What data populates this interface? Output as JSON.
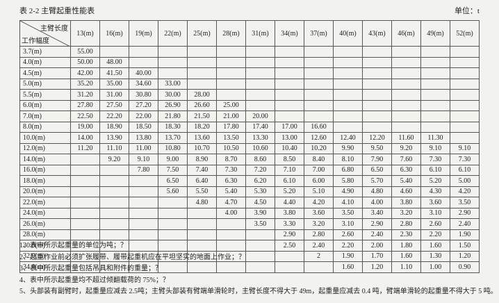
{
  "header": {
    "title": "表 2-2  主臂起重性能表",
    "unit": "单位：t"
  },
  "table": {
    "corner_top": "主臂长度",
    "corner_bottom": "工作幅度",
    "columns": [
      "13(m)",
      "16(m)",
      "19(m)",
      "22(m)",
      "25(m)",
      "28(m)",
      "31(m)",
      "34(m)",
      "37(m)",
      "40(m)",
      "43(m)",
      "46(m)",
      "49(m)",
      "52(m)"
    ],
    "rows": [
      [
        "3.7(m)",
        "55.00",
        null,
        null,
        null,
        null,
        null,
        null,
        null,
        null,
        null,
        null,
        null,
        null,
        null
      ],
      [
        "4.0(m)",
        "50.00",
        "48.00",
        null,
        null,
        null,
        null,
        null,
        null,
        null,
        null,
        null,
        null,
        null,
        null
      ],
      [
        "4.5(m)",
        "42.00",
        "41.50",
        "40.00",
        null,
        null,
        null,
        null,
        null,
        null,
        null,
        null,
        null,
        null,
        null
      ],
      [
        "5.0(m)",
        "35.20",
        "35.00",
        "34.60",
        "33.00",
        null,
        null,
        null,
        null,
        null,
        null,
        null,
        null,
        null,
        null
      ],
      [
        "5.5(m)",
        "31.20",
        "31.00",
        "30.80",
        "30.00",
        "28.00",
        null,
        null,
        null,
        null,
        null,
        null,
        null,
        null,
        null
      ],
      [
        "6.0(m)",
        "27.80",
        "27.50",
        "27.20",
        "26.90",
        "26.60",
        "25.00",
        null,
        null,
        null,
        null,
        null,
        null,
        null,
        null
      ],
      [
        "7.0(m)",
        "22.50",
        "22.20",
        "22.00",
        "21.80",
        "21.50",
        "21.00",
        "20.00",
        null,
        null,
        null,
        null,
        null,
        null,
        null
      ],
      [
        "8.0(m)",
        "19.00",
        "18.90",
        "18.50",
        "18.30",
        "18.20",
        "17.80",
        "17.40",
        "17.00",
        "16.60",
        null,
        null,
        null,
        null,
        null
      ],
      [
        "10.0(m)",
        "14.00",
        "13.90",
        "13.80",
        "13.70",
        "13.60",
        "13.50",
        "13.30",
        "13.00",
        "12.60",
        "12.40",
        "12.20",
        "11.60",
        "11.30",
        null
      ],
      [
        "12.0(m)",
        "11.20",
        "11.10",
        "11.00",
        "10.80",
        "10.70",
        "10.50",
        "10.60",
        "10.40",
        "10.20",
        "9.90",
        "9.50",
        "9.20",
        "9.10",
        "9.10"
      ],
      [
        "14.0(m)",
        null,
        "9.20",
        "9.10",
        "9.00",
        "8.90",
        "8.70",
        "8.60",
        "8.50",
        "8.40",
        "8.10",
        "7.90",
        "7.60",
        "7.30",
        "7.30"
      ],
      [
        "16.0(m)",
        null,
        null,
        "7.80",
        "7.50",
        "7.40",
        "7.30",
        "7.20",
        "7.10",
        "7.00",
        "6.80",
        "6.50",
        "6.30",
        "6.10",
        "6.10"
      ],
      [
        "18.0(m)",
        null,
        null,
        null,
        "6.50",
        "6.40",
        "6.30",
        "6.20",
        "6.10",
        "6.00",
        "5.80",
        "5.70",
        "5.40",
        "5.20",
        "5.00"
      ],
      [
        "20.0(m)",
        null,
        null,
        null,
        "5.60",
        "5.50",
        "5.40",
        "5.30",
        "5.20",
        "5.10",
        "4.90",
        "4.80",
        "4.60",
        "4.30",
        "4.20"
      ],
      [
        "22.0(m)",
        null,
        null,
        null,
        null,
        "4.80",
        "4.70",
        "4.50",
        "4.40",
        "4.20",
        "4.10",
        "4.00",
        "3.80",
        "3.60",
        "3.50"
      ],
      [
        "24.0(m)",
        null,
        null,
        null,
        null,
        null,
        "4.00",
        "3.90",
        "3.80",
        "3.60",
        "3.50",
        "3.40",
        "3.20",
        "3.10",
        "2.90"
      ],
      [
        "26.0(m)",
        null,
        null,
        null,
        null,
        null,
        null,
        "3.50",
        "3.30",
        "3.20",
        "3.10",
        "2.90",
        "2.80",
        "2.60",
        "2.40"
      ],
      [
        "28.0(m)",
        null,
        null,
        null,
        null,
        null,
        null,
        null,
        "2.90",
        "2.80",
        "2.60",
        "2.40",
        "2.30",
        "2.20",
        "1.90"
      ],
      [
        "30.0(m)",
        null,
        null,
        null,
        null,
        null,
        null,
        null,
        "2.50",
        "2.40",
        "2.20",
        "2.00",
        "1.80",
        "1.60",
        "1.50"
      ],
      [
        "32.0(m)",
        null,
        null,
        null,
        null,
        null,
        null,
        null,
        null,
        "2",
        "1.90",
        "1.70",
        "1.60",
        "1.30",
        "1.20"
      ],
      [
        "34.0(m)",
        null,
        null,
        null,
        null,
        null,
        null,
        null,
        null,
        null,
        "1.60",
        "1.20",
        "1.10",
        "1.00",
        "0.90"
      ]
    ]
  },
  "notes": [
    "1、表中所示起重量的单位为吨；？",
    "2、起重作业前必须扩张履带、履带起重机应在平坦坚实的地面上作业；？",
    "3、表中所示起重量包括吊具和附件的重量；？",
    "4、表中所示起重量均不超过倾翻载荷的 75%；？",
    "5、头部装有副臂时，起重量应减去 2.5吨；主臂头部装有臂端单滑轮时，主臂长度不得大于 49m，起重量应减去 0.4 吨，臂端单滑轮的起重量不得大于 5 吨。"
  ]
}
